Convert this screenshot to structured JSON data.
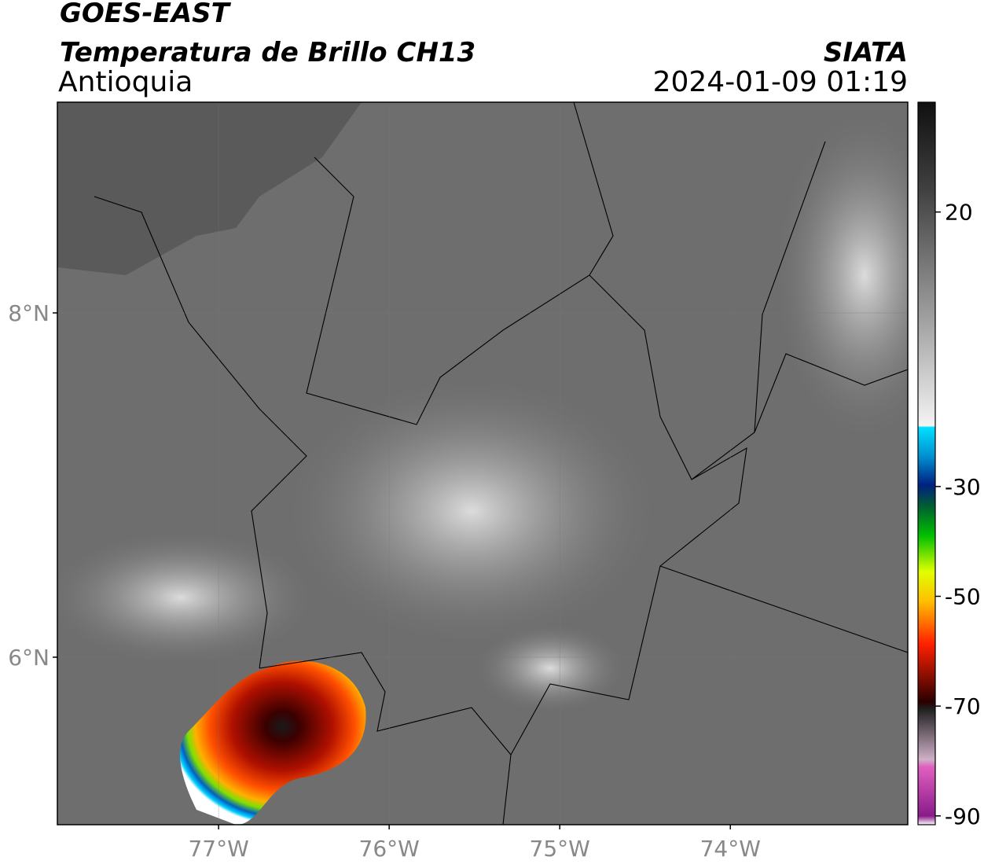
{
  "header": {
    "title": "GOES-EAST",
    "subtitle": "Temperatura de Brillo CH13",
    "region": "Antioquia",
    "source": "SIATA",
    "datetime": "2024-01-09 01:19"
  },
  "map": {
    "xlim": [
      -77.945,
      -72.96
    ],
    "ylim": [
      5.027,
      9.224
    ],
    "xticks": [
      {
        "value": -77,
        "label": "77°W"
      },
      {
        "value": -76,
        "label": "76°W"
      },
      {
        "value": -75,
        "label": "75°W"
      },
      {
        "value": -74,
        "label": "74°W"
      }
    ],
    "yticks": [
      {
        "value": 8,
        "label": "8°N"
      },
      {
        "value": 6,
        "label": "6°N"
      }
    ],
    "grid": true
  },
  "colorbar": {
    "lim": [
      -91.6,
      40
    ],
    "ticks": [
      20,
      -30,
      -50,
      -70,
      -90
    ]
  }
}
